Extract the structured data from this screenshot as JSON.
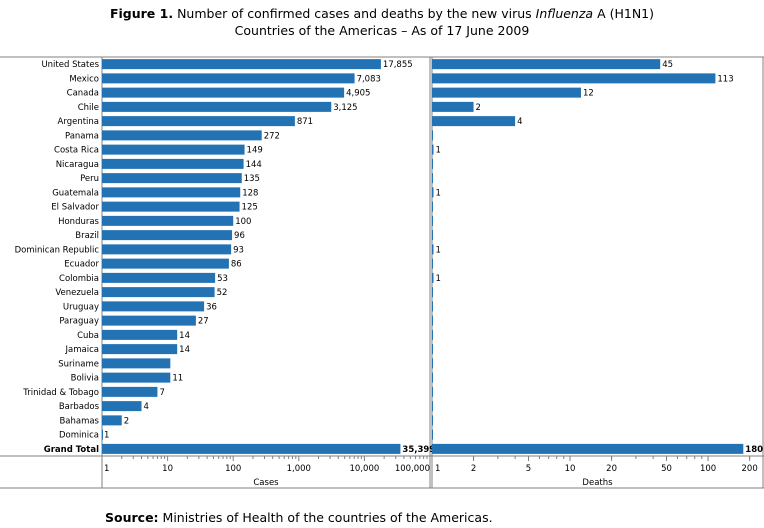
{
  "figure": {
    "label": "Figure 1.",
    "title_part1": "Number of confirmed cases and deaths by the new virus",
    "title_virus": "Influenza",
    "title_part2": "A (H1N1)",
    "subtitle": "Countries of the Americas – As of 17 June 2009"
  },
  "source": {
    "label": "Source:",
    "text": "Ministries of Health of the countries of the Americas."
  },
  "colors": {
    "bar": "#2272b4",
    "axis": "#808080"
  },
  "chart_data": [
    {
      "type": "bar",
      "orientation": "horizontal",
      "scale": "log",
      "xlabel": "Cases",
      "xlim": [
        1,
        100000
      ],
      "xticks": [
        "1",
        "10",
        "100",
        "1,000",
        "10,000",
        "100,000"
      ],
      "categories": [
        "United States",
        "Mexico",
        "Canada",
        "Chile",
        "Argentina",
        "Panama",
        "Costa Rica",
        "Nicaragua",
        "Peru",
        "Guatemala",
        "El Salvador",
        "Honduras",
        "Brazil",
        "Dominican Republic",
        "Ecuador",
        "Colombia",
        "Venezuela",
        "Uruguay",
        "Paraguay",
        "Cuba",
        "Jamaica",
        "Suriname",
        "Bolivia",
        "Trinidad & Tobago",
        "Barbados",
        "Bahamas",
        "Dominica",
        "Grand Total"
      ],
      "values": [
        17855,
        7083,
        4905,
        3125,
        871,
        272,
        149,
        144,
        135,
        128,
        125,
        100,
        96,
        93,
        86,
        53,
        52,
        36,
        27,
        14,
        14,
        11,
        11,
        7,
        4,
        2,
        1,
        35399
      ],
      "value_labels": [
        "17,855",
        "7,083",
        "4,905",
        "3,125",
        "871",
        "272",
        "149",
        "144",
        "135",
        "128",
        "125",
        "100",
        "96",
        "93",
        "86",
        "53",
        "52",
        "36",
        "27",
        "14",
        "14",
        "",
        "11",
        "7",
        "4",
        "2",
        "1",
        "35,399"
      ]
    },
    {
      "type": "bar",
      "orientation": "horizontal",
      "scale": "log",
      "xlabel": "Deaths",
      "xlim": [
        1,
        250
      ],
      "xticks": [
        "1",
        "2",
        "5",
        "10",
        "20",
        "50",
        "100",
        "200"
      ],
      "categories": [
        "United States",
        "Mexico",
        "Canada",
        "Chile",
        "Argentina",
        "Panama",
        "Costa Rica",
        "Nicaragua",
        "Peru",
        "Guatemala",
        "El Salvador",
        "Honduras",
        "Brazil",
        "Dominican Republic",
        "Ecuador",
        "Colombia",
        "Venezuela",
        "Uruguay",
        "Paraguay",
        "Cuba",
        "Jamaica",
        "Suriname",
        "Bolivia",
        "Trinidad & Tobago",
        "Barbados",
        "Bahamas",
        "Dominica",
        "Grand Total"
      ],
      "values": [
        45,
        113,
        12,
        2,
        4,
        0,
        1,
        0,
        0,
        1,
        0,
        0,
        0,
        1,
        0,
        1,
        0,
        0,
        0,
        0,
        0,
        0,
        0,
        0,
        0,
        0,
        0,
        180
      ],
      "value_labels": [
        "45",
        "113",
        "12",
        "2",
        "4",
        "",
        "1",
        "",
        "",
        "1",
        "",
        "",
        "",
        "1",
        "",
        "1",
        "",
        "",
        "",
        "",
        "",
        "",
        "",
        "",
        "",
        "",
        "",
        "180"
      ]
    }
  ]
}
